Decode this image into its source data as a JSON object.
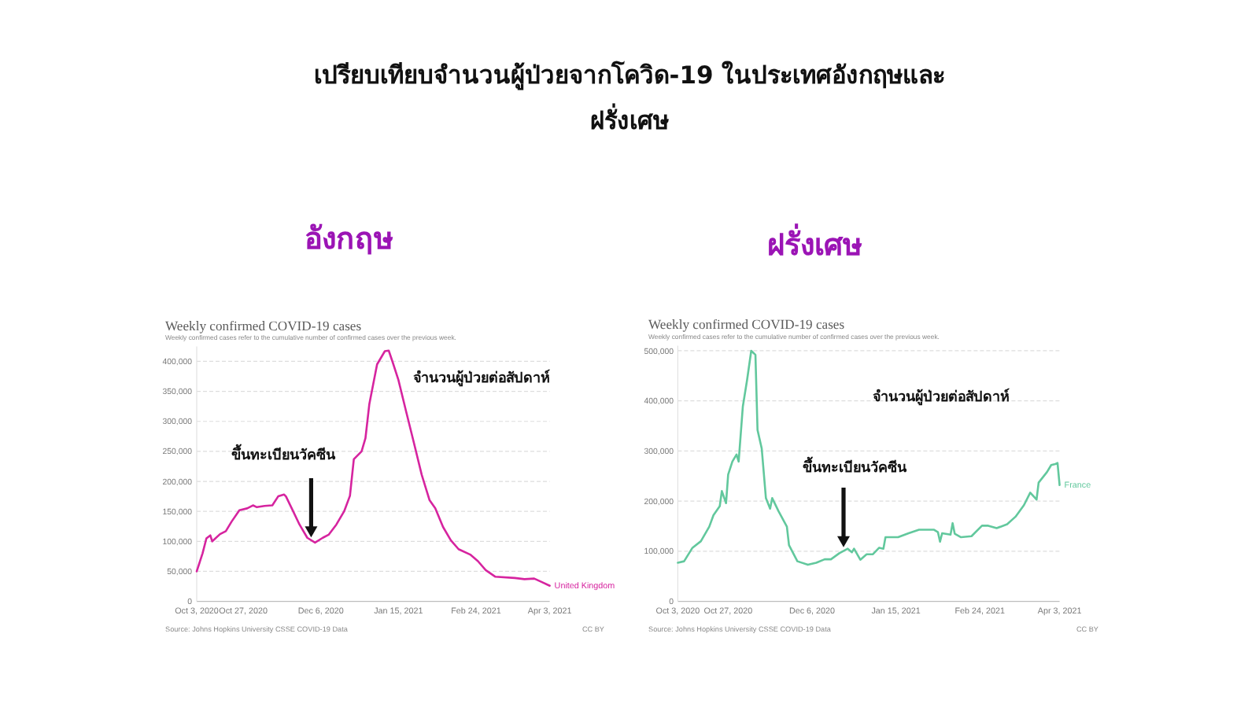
{
  "chart_data": [
    {
      "type": "line",
      "title": "Weekly confirmed COVID-19 cases",
      "subtitle": "Weekly confirmed cases refer to the cumulative number of confirmed cases over the previous week.",
      "annotations": [
        "เปรียบเทียบจำนวนผู้ป่วยจากโควิด-19 ในประเทศอังกฤษและฝรั่งเศษ",
        "อังกฤษ",
        "จำนวนผู้ป่วยต่อสัปดาห์",
        {
          "text": "ขึ้นทะเบียนวัคซีน",
          "x": "2020-12-01",
          "y": 100000
        },
        "Source: Johns Hopkins University CSSE COVID-19 Data",
        "CC BY"
      ],
      "xlim": [
        "2020-10-03",
        "2021-04-03"
      ],
      "xticks": [
        {
          "value": "2020-10-03",
          "label": "Oct 3, 2020"
        },
        {
          "value": "2020-10-27",
          "label": "Oct 27, 2020"
        },
        {
          "value": "2020-12-06",
          "label": "Dec 6, 2020"
        },
        {
          "value": "2021-01-15",
          "label": "Jan 15, 2021"
        },
        {
          "value": "2021-02-24",
          "label": "Feb 24, 2021"
        },
        {
          "value": "2021-04-03",
          "label": "Apr 3, 2021"
        }
      ],
      "ylim": [
        0,
        425000
      ],
      "yticks": [
        0,
        {
          "value": 50000,
          "label": "50,000"
        },
        {
          "value": 100000,
          "label": "100,000"
        },
        {
          "value": 150000,
          "label": "150,000"
        },
        {
          "value": 200000,
          "label": "200,000"
        },
        {
          "value": 250000,
          "label": "250,000"
        },
        {
          "value": 300000,
          "label": "300,000"
        },
        {
          "value": 350000,
          "label": "350,000"
        },
        {
          "value": 400000,
          "label": "400,000"
        }
      ],
      "grid": "y",
      "legend": false,
      "series": [
        {
          "name": "United Kingdom",
          "color": "#d6249f",
          "x": [
            "2020-10-03",
            "2020-10-06",
            "2020-10-08",
            "2020-10-10",
            "2020-10-11",
            "2020-10-15",
            "2020-10-18",
            "2020-10-21",
            "2020-10-25",
            "2020-10-29",
            "2020-11-01",
            "2020-11-03",
            "2020-11-07",
            "2020-11-11",
            "2020-11-14",
            "2020-11-17",
            "2020-11-18",
            "2020-11-21",
            "2020-11-25",
            "2020-11-29",
            "2020-12-03",
            "2020-12-07",
            "2020-12-10",
            "2020-12-14",
            "2020-12-18",
            "2020-12-21",
            "2020-12-23",
            "2020-12-27",
            "2020-12-29",
            "2020-12-31",
            "2021-01-04",
            "2021-01-08",
            "2021-01-10",
            "2021-01-12",
            "2021-01-15",
            "2021-01-19",
            "2021-01-23",
            "2021-01-27",
            "2021-01-31",
            "2021-02-03",
            "2021-02-07",
            "2021-02-11",
            "2021-02-15",
            "2021-02-21",
            "2021-02-25",
            "2021-03-01",
            "2021-03-06",
            "2021-03-16",
            "2021-03-21",
            "2021-03-26",
            "2021-03-30",
            "2021-04-03"
          ],
          "values": [
            50000,
            80000,
            105000,
            110000,
            100000,
            112000,
            117000,
            133000,
            152000,
            155000,
            160000,
            157000,
            159000,
            160000,
            175000,
            178000,
            175000,
            155000,
            128000,
            106000,
            98000,
            106000,
            111000,
            128000,
            150000,
            176000,
            237000,
            250000,
            272000,
            329000,
            395000,
            417000,
            418000,
            399000,
            369000,
            316000,
            264000,
            211000,
            169000,
            155000,
            124000,
            102000,
            87000,
            78000,
            67000,
            52000,
            41000,
            39000,
            37000,
            38000,
            32000,
            26000
          ]
        }
      ]
    },
    {
      "type": "line",
      "title": "Weekly confirmed COVID-19 cases",
      "subtitle": "Weekly confirmed cases refer to the cumulative number of confirmed cases over the previous week.",
      "annotations": [
        "ฝรั่งเศษ",
        "จำนวนผู้ป่วยต่อสัปดาห์",
        {
          "text": "ขึ้นทะเบียนวัคซีน",
          "x": "2020-12-21",
          "y": 100000
        },
        "Source: Johns Hopkins University CSSE COVID-19 Data",
        "CC BY"
      ],
      "xlim": [
        "2020-10-03",
        "2021-04-03"
      ],
      "xticks": [
        {
          "value": "2020-10-03",
          "label": "Oct 3, 2020"
        },
        {
          "value": "2020-10-27",
          "label": "Oct 27, 2020"
        },
        {
          "value": "2020-12-06",
          "label": "Dec 6, 2020"
        },
        {
          "value": "2021-01-15",
          "label": "Jan 15, 2021"
        },
        {
          "value": "2021-02-24",
          "label": "Feb 24, 2021"
        },
        {
          "value": "2021-04-03",
          "label": "Apr 3, 2021"
        }
      ],
      "ylim": [
        0,
        510000
      ],
      "yticks": [
        0,
        {
          "value": 100000,
          "label": "100,000"
        },
        {
          "value": 200000,
          "label": "200,000"
        },
        {
          "value": 300000,
          "label": "300,000"
        },
        {
          "value": 400000,
          "label": "400,000"
        },
        {
          "value": 500000,
          "label": "500,000"
        }
      ],
      "grid": "y",
      "legend": false,
      "series": [
        {
          "name": "France",
          "color": "#62c89d",
          "x": [
            "2020-10-03",
            "2020-10-06",
            "2020-10-10",
            "2020-10-14",
            "2020-10-18",
            "2020-10-20",
            "2020-10-23",
            "2020-10-24",
            "2020-10-26",
            "2020-10-27",
            "2020-10-29",
            "2020-10-31",
            "2020-11-01",
            "2020-11-03",
            "2020-11-05",
            "2020-11-07",
            "2020-11-09",
            "2020-11-10",
            "2020-11-12",
            "2020-11-14",
            "2020-11-16",
            "2020-11-17",
            "2020-11-20",
            "2020-11-24",
            "2020-11-25",
            "2020-11-29",
            "2020-12-04",
            "2020-12-08",
            "2020-12-12",
            "2020-12-15",
            "2020-12-19",
            "2020-12-23",
            "2020-12-25",
            "2020-12-26",
            "2020-12-29",
            "2021-01-01",
            "2021-01-04",
            "2021-01-07",
            "2021-01-09",
            "2021-01-10",
            "2021-01-16",
            "2021-01-21",
            "2021-01-26",
            "2021-02-02",
            "2021-02-04",
            "2021-02-05",
            "2021-02-06",
            "2021-02-10",
            "2021-02-11",
            "2021-02-12",
            "2021-02-15",
            "2021-02-20",
            "2021-02-25",
            "2021-02-28",
            "2021-03-04",
            "2021-03-09",
            "2021-03-13",
            "2021-03-17",
            "2021-03-20",
            "2021-03-23",
            "2021-03-24",
            "2021-03-28",
            "2021-03-30",
            "2021-04-01",
            "2021-04-02",
            "2021-04-03"
          ],
          "values": [
            77000,
            80000,
            107000,
            120000,
            149000,
            172000,
            190000,
            220000,
            196000,
            253000,
            279000,
            293000,
            279000,
            389000,
            441000,
            500000,
            492000,
            342000,
            305000,
            206000,
            185000,
            206000,
            180000,
            149000,
            112000,
            80000,
            73000,
            77000,
            84000,
            84000,
            96000,
            105000,
            98000,
            105000,
            83000,
            94000,
            94000,
            107000,
            105000,
            128000,
            128000,
            136000,
            143000,
            143000,
            138000,
            119000,
            136000,
            133000,
            156000,
            135000,
            128000,
            130000,
            151000,
            151000,
            146000,
            154000,
            169000,
            192000,
            217000,
            203000,
            237000,
            258000,
            272000,
            274000,
            276000,
            232000
          ]
        }
      ]
    }
  ]
}
